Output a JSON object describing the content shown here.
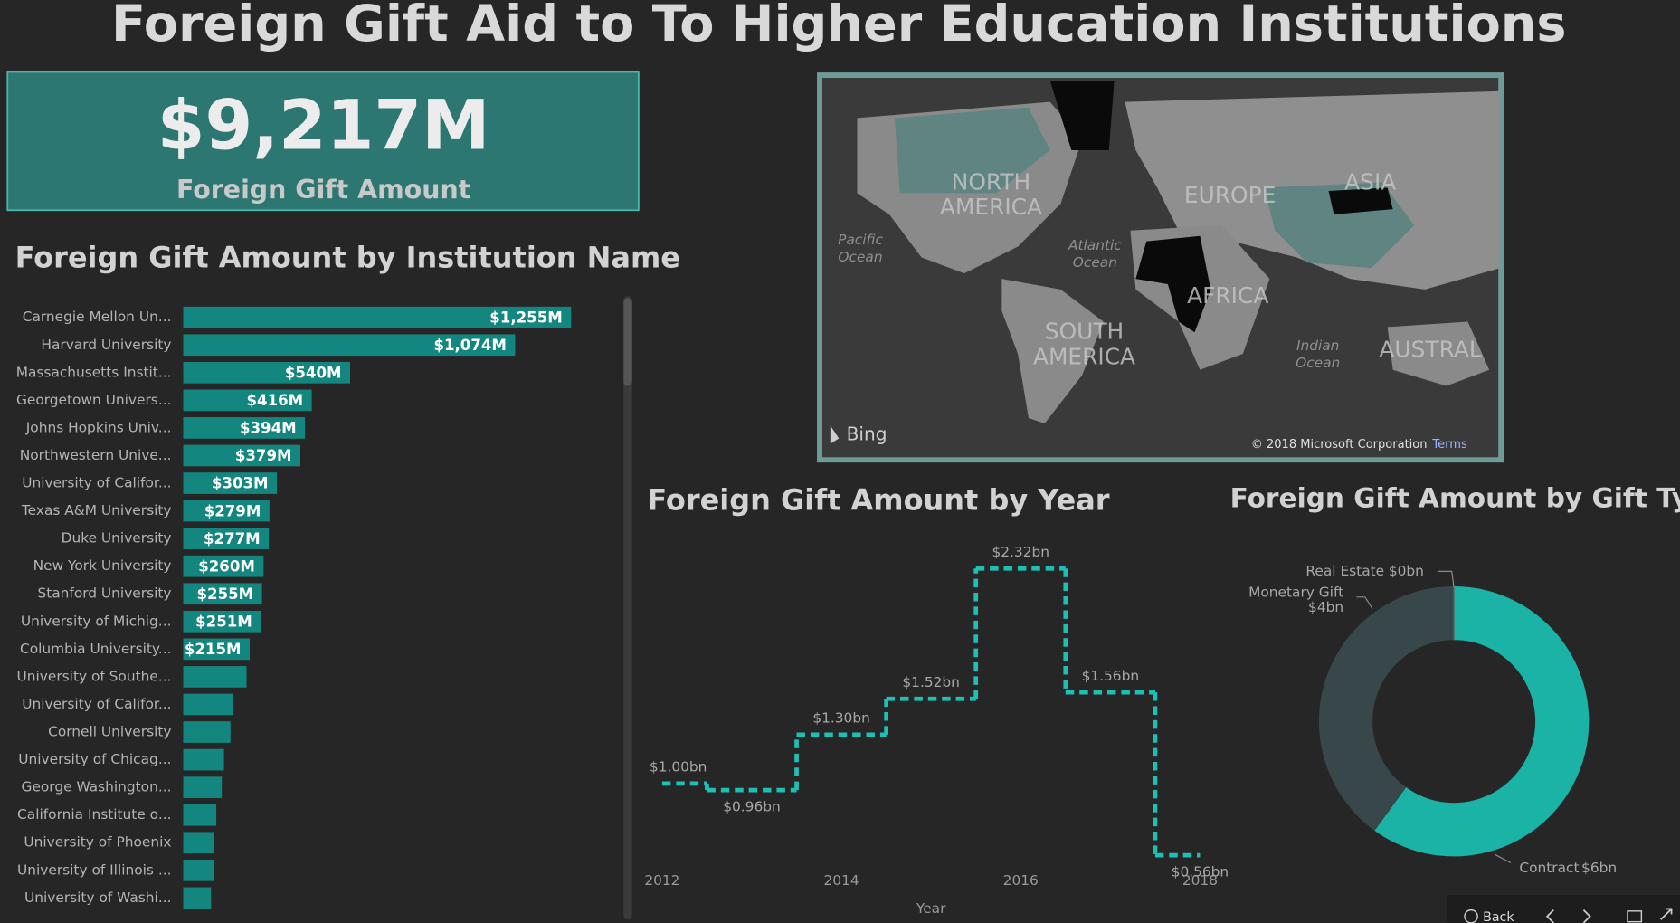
{
  "title": "Foreign Gift Aid to To Higher Education Institutions",
  "kpi": {
    "value": "$9,217M",
    "label": "Foreign Gift Amount"
  },
  "map": {
    "labels": [
      "NORTH",
      "AMERICA",
      "EUROPE",
      "ASIA",
      "AFRICA",
      "SOUTH",
      "AMERICA",
      "AUSTRAL"
    ],
    "oceans": [
      [
        "Pacific",
        "Ocean"
      ],
      [
        "Atlantic",
        "Ocean"
      ],
      [
        "Indian",
        "Ocean"
      ]
    ],
    "brand": "Bing",
    "copyright": "© 2018 Microsoft Corporation",
    "terms": "Terms"
  },
  "nav": {
    "back": "Back"
  },
  "chart_data": [
    {
      "type": "bar",
      "title": "Foreign Gift Amount by Institution Name",
      "color": "#13877f",
      "categories": [
        "Carnegie Mellon Un...",
        "Harvard University",
        "Massachusetts Instit...",
        "Georgetown Univers...",
        "Johns Hopkins Univ...",
        "Northwestern Unive...",
        "University of Califor...",
        "Texas A&M University",
        "Duke University",
        "New York University",
        "Stanford University",
        "University of Michig...",
        "Columbia University...",
        "University of Southe...",
        "University of Califor...",
        "Cornell University",
        "University of Chicag...",
        "George Washington...",
        "California Institute o...",
        "University of Phoenix",
        "University of Illinois ...",
        "University of Washi..."
      ],
      "values": [
        1255,
        1074,
        540,
        416,
        394,
        379,
        303,
        279,
        277,
        260,
        255,
        251,
        215,
        205,
        160,
        153,
        132,
        125,
        107,
        100,
        100,
        90
      ],
      "value_labels": [
        "$1,255M",
        "$1,074M",
        "$540M",
        "$416M",
        "$394M",
        "$379M",
        "$303M",
        "$279M",
        "$277M",
        "$260M",
        "$255M",
        "$251M",
        "$215M",
        null,
        null,
        null,
        null,
        null,
        null,
        null,
        null,
        null
      ]
    },
    {
      "type": "line",
      "title": "Foreign Gift Amount by Year",
      "color": "#1fc0b4",
      "xlabel": "Year",
      "x": [
        2012,
        2013,
        2014,
        2015,
        2016,
        2017,
        2018
      ],
      "values": [
        1.0,
        0.96,
        1.3,
        1.52,
        2.32,
        1.56,
        0.56
      ],
      "value_labels": [
        "$1.00bn",
        "$0.96bn",
        "$1.30bn",
        "$1.52bn",
        "$2.32bn",
        "$1.56bn",
        "$0.56bn"
      ],
      "xlim": [
        2012,
        2018
      ],
      "xticks": [
        2012,
        2014,
        2016,
        2018
      ]
    },
    {
      "type": "pie",
      "title": "Foreign Gift Amount by Gift Type",
      "categories": [
        "Contract",
        "Monetary Gift",
        "Real Estate"
      ],
      "values": [
        6,
        4,
        0
      ],
      "value_labels": [
        "$6bn",
        "$4bn",
        "$0bn"
      ],
      "colors": [
        "#1ab3a6",
        "#37474a",
        "#5a6a6c"
      ]
    }
  ]
}
